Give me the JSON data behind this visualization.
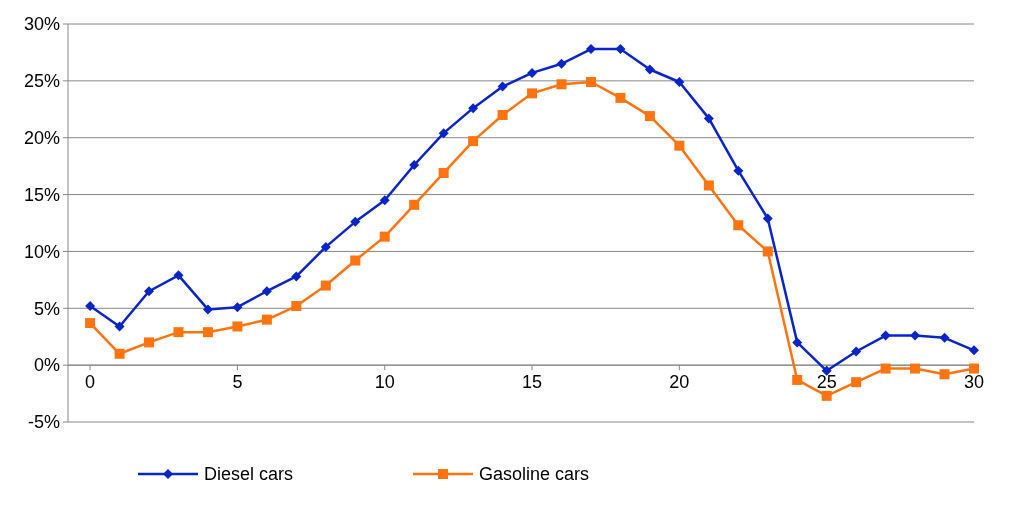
{
  "chart_data": {
    "type": "line",
    "x": [
      0,
      1,
      2,
      3,
      4,
      5,
      6,
      7,
      8,
      9,
      10,
      11,
      12,
      13,
      14,
      15,
      16,
      17,
      18,
      19,
      20,
      21,
      22,
      23,
      24,
      25,
      26,
      27,
      28,
      29,
      30
    ],
    "series": [
      {
        "name": "Diesel cars",
        "color": "#0a24c8",
        "marker": "diamond",
        "values": [
          5.2,
          3.4,
          6.5,
          7.9,
          4.9,
          5.1,
          6.5,
          7.8,
          10.4,
          12.6,
          14.5,
          17.6,
          20.4,
          22.6,
          24.5,
          25.7,
          26.5,
          27.8,
          27.8,
          26.0,
          24.9,
          21.7,
          17.1,
          12.9,
          2.0,
          -0.5,
          1.2,
          2.6,
          2.6,
          2.4,
          1.3
        ]
      },
      {
        "name": "Gasoline cars",
        "color": "#ff7410",
        "marker": "square",
        "values": [
          3.7,
          1.0,
          2.0,
          2.9,
          2.9,
          3.4,
          4.0,
          5.2,
          7.0,
          9.2,
          11.3,
          14.1,
          16.9,
          19.7,
          22.0,
          23.9,
          24.7,
          24.9,
          23.5,
          21.9,
          19.3,
          15.8,
          12.3,
          10.0,
          -1.3,
          -2.7,
          -1.5,
          -0.3,
          -0.3,
          -0.8,
          -0.3
        ]
      }
    ],
    "xlim": [
      -0.75,
      30
    ],
    "xticks": [
      0,
      5,
      10,
      15,
      20,
      25,
      30
    ],
    "ylim": [
      -5,
      30
    ],
    "yticks": [
      {
        "value": -5,
        "label": "-5%"
      },
      {
        "value": 0,
        "label": "0%"
      },
      {
        "value": 5,
        "label": "5%"
      },
      {
        "value": 10,
        "label": "10%"
      },
      {
        "value": 15,
        "label": "15%"
      },
      {
        "value": 20,
        "label": "20%"
      },
      {
        "value": 25,
        "label": "25%"
      },
      {
        "value": 30,
        "label": "30%"
      }
    ],
    "grid": "y",
    "legend": "bottom",
    "line_style": "solid"
  }
}
